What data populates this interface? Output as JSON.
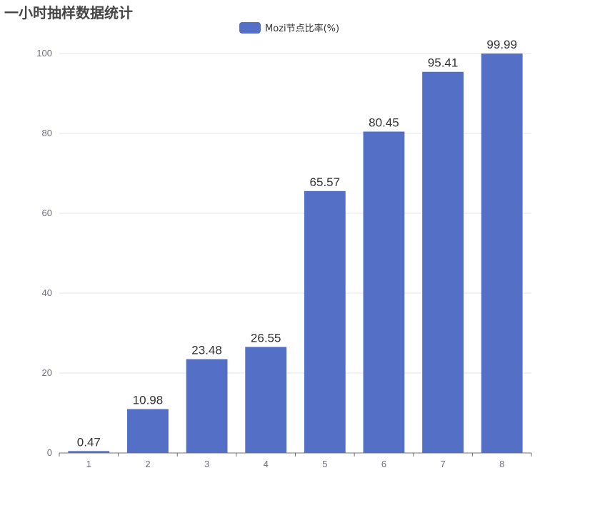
{
  "chart_data": {
    "type": "bar",
    "title": "一小时抽样数据统计",
    "categories": [
      "1",
      "2",
      "3",
      "4",
      "5",
      "6",
      "7",
      "8"
    ],
    "series": [
      {
        "name": "Mozi节点比率(%)",
        "values": [
          0.47,
          10.98,
          23.48,
          26.55,
          65.57,
          80.45,
          95.41,
          99.99
        ]
      }
    ],
    "data_labels": [
      "0.47",
      "10.98",
      "23.48",
      "26.55",
      "65.57",
      "80.45",
      "95.41",
      "99.99"
    ],
    "ylim": [
      0,
      100
    ],
    "yticks": [
      "0",
      "20",
      "40",
      "60",
      "80",
      "100"
    ],
    "xlabel": "",
    "ylabel": "",
    "grid": true,
    "legend": "top-center",
    "bar_color": "#5470c6"
  }
}
